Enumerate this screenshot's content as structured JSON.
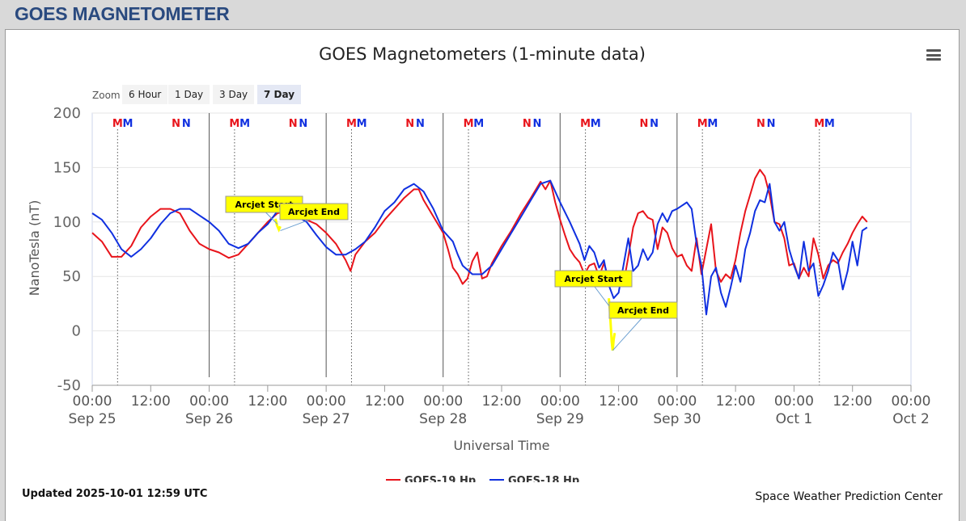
{
  "header": {
    "title": "GOES MAGNETOMETER"
  },
  "chart": {
    "title": "GOES Magnetometers (1-minute data)",
    "menu_icon": "hamburger-menu-icon",
    "zoom": {
      "label": "Zoom",
      "buttons": [
        {
          "label": "6 Hour",
          "active": false
        },
        {
          "label": "1 Day",
          "active": false
        },
        {
          "label": "3 Day",
          "active": false
        },
        {
          "label": "7 Day",
          "active": true
        }
      ]
    },
    "updated": "Updated 2025-10-01 12:59 UTC",
    "credit": "Space Weather Prediction Center"
  },
  "chart_data": {
    "type": "line",
    "title": "GOES Magnetometers (1-minute data)",
    "xlabel": "Universal Time",
    "ylabel": "NanoTesla (nT)",
    "x_unit": "hours since Sep 25 00:00 UTC",
    "xlim": [
      0,
      168
    ],
    "ylim": [
      -50,
      200
    ],
    "x_ticks": [
      {
        "x": 0,
        "label": "00:00",
        "sublabel": "Sep 25"
      },
      {
        "x": 12,
        "label": "12:00",
        "sublabel": ""
      },
      {
        "x": 24,
        "label": "00:00",
        "sublabel": "Sep 26"
      },
      {
        "x": 36,
        "label": "12:00",
        "sublabel": ""
      },
      {
        "x": 48,
        "label": "00:00",
        "sublabel": "Sep 27"
      },
      {
        "x": 60,
        "label": "12:00",
        "sublabel": ""
      },
      {
        "x": 72,
        "label": "00:00",
        "sublabel": "Sep 28"
      },
      {
        "x": 84,
        "label": "12:00",
        "sublabel": ""
      },
      {
        "x": 96,
        "label": "00:00",
        "sublabel": "Sep 29"
      },
      {
        "x": 108,
        "label": "12:00",
        "sublabel": ""
      },
      {
        "x": 120,
        "label": "00:00",
        "sublabel": "Sep 30"
      },
      {
        "x": 132,
        "label": "12:00",
        "sublabel": ""
      },
      {
        "x": 144,
        "label": "00:00",
        "sublabel": "Oct 1"
      },
      {
        "x": 156,
        "label": "12:00",
        "sublabel": ""
      },
      {
        "x": 168,
        "label": "00:00",
        "sublabel": "Oct 2"
      }
    ],
    "y_ticks": [
      -50,
      0,
      50,
      100,
      150,
      200
    ],
    "grid": true,
    "legend_position": "bottom-center",
    "day_lines": [
      24,
      48,
      72,
      96,
      120
    ],
    "series": [
      {
        "name": "GOES-19 Hp",
        "color": "#e8141b",
        "points": [
          [
            0,
            90
          ],
          [
            2,
            82
          ],
          [
            4,
            68
          ],
          [
            6,
            68
          ],
          [
            8,
            78
          ],
          [
            10,
            95
          ],
          [
            12,
            105
          ],
          [
            14,
            112
          ],
          [
            16,
            112
          ],
          [
            18,
            108
          ],
          [
            20,
            92
          ],
          [
            22,
            80
          ],
          [
            24,
            75
          ],
          [
            26,
            72
          ],
          [
            28,
            67
          ],
          [
            30,
            70
          ],
          [
            32,
            80
          ],
          [
            34,
            90
          ],
          [
            36,
            100
          ],
          [
            38,
            108
          ],
          [
            40,
            110
          ],
          [
            42,
            107
          ],
          [
            44,
            102
          ],
          [
            46,
            98
          ],
          [
            48,
            90
          ],
          [
            50,
            80
          ],
          [
            52,
            65
          ],
          [
            53,
            55
          ],
          [
            54,
            70
          ],
          [
            56,
            82
          ],
          [
            58,
            90
          ],
          [
            60,
            102
          ],
          [
            62,
            112
          ],
          [
            64,
            122
          ],
          [
            66,
            130
          ],
          [
            67,
            130
          ],
          [
            68,
            120
          ],
          [
            70,
            105
          ],
          [
            72,
            90
          ],
          [
            73,
            75
          ],
          [
            74,
            58
          ],
          [
            75,
            52
          ],
          [
            76,
            43
          ],
          [
            77,
            48
          ],
          [
            78,
            64
          ],
          [
            79,
            72
          ],
          [
            80,
            48
          ],
          [
            81,
            50
          ],
          [
            82,
            62
          ],
          [
            84,
            78
          ],
          [
            86,
            92
          ],
          [
            88,
            108
          ],
          [
            90,
            122
          ],
          [
            92,
            137
          ],
          [
            93,
            130
          ],
          [
            94,
            138
          ],
          [
            95,
            118
          ],
          [
            96,
            102
          ],
          [
            97,
            88
          ],
          [
            98,
            75
          ],
          [
            99,
            68
          ],
          [
            100,
            63
          ],
          [
            101,
            52
          ],
          [
            102,
            60
          ],
          [
            103,
            62
          ],
          [
            104,
            50
          ],
          [
            105,
            62
          ],
          [
            106,
            48
          ],
          [
            107,
            52
          ],
          [
            108,
            45
          ],
          [
            109,
            43
          ],
          [
            110,
            68
          ],
          [
            111,
            95
          ],
          [
            112,
            108
          ],
          [
            113,
            110
          ],
          [
            114,
            104
          ],
          [
            115,
            102
          ],
          [
            116,
            75
          ],
          [
            117,
            95
          ],
          [
            118,
            90
          ],
          [
            119,
            76
          ],
          [
            120,
            68
          ],
          [
            121,
            70
          ],
          [
            122,
            60
          ],
          [
            123,
            55
          ],
          [
            124,
            85
          ],
          [
            125,
            52
          ],
          [
            126,
            75
          ],
          [
            127,
            98
          ],
          [
            128,
            55
          ],
          [
            129,
            45
          ],
          [
            130,
            52
          ],
          [
            131,
            48
          ],
          [
            132,
            65
          ],
          [
            133,
            90
          ],
          [
            134,
            110
          ],
          [
            135,
            125
          ],
          [
            136,
            140
          ],
          [
            137,
            148
          ],
          [
            138,
            142
          ],
          [
            139,
            125
          ],
          [
            140,
            100
          ],
          [
            141,
            98
          ],
          [
            142,
            85
          ],
          [
            143,
            60
          ],
          [
            144,
            62
          ],
          [
            145,
            48
          ],
          [
            146,
            58
          ],
          [
            147,
            50
          ],
          [
            148,
            85
          ],
          [
            149,
            70
          ],
          [
            150,
            48
          ],
          [
            151,
            60
          ],
          [
            152,
            65
          ],
          [
            153,
            62
          ],
          [
            154,
            72
          ],
          [
            155,
            80
          ],
          [
            156,
            90
          ],
          [
            157,
            98
          ],
          [
            158,
            105
          ],
          [
            159,
            100
          ]
        ]
      },
      {
        "name": "GOES-18 Hp",
        "color": "#1030e0",
        "points": [
          [
            0,
            108
          ],
          [
            2,
            102
          ],
          [
            4,
            90
          ],
          [
            6,
            75
          ],
          [
            8,
            68
          ],
          [
            10,
            75
          ],
          [
            12,
            85
          ],
          [
            14,
            98
          ],
          [
            16,
            108
          ],
          [
            18,
            112
          ],
          [
            20,
            112
          ],
          [
            22,
            106
          ],
          [
            24,
            100
          ],
          [
            26,
            92
          ],
          [
            28,
            80
          ],
          [
            30,
            76
          ],
          [
            32,
            80
          ],
          [
            34,
            90
          ],
          [
            36,
            98
          ],
          [
            38,
            110
          ],
          [
            40,
            112
          ],
          [
            42,
            105
          ],
          [
            44,
            100
          ],
          [
            46,
            88
          ],
          [
            48,
            77
          ],
          [
            50,
            70
          ],
          [
            52,
            70
          ],
          [
            54,
            75
          ],
          [
            56,
            82
          ],
          [
            58,
            95
          ],
          [
            60,
            110
          ],
          [
            62,
            118
          ],
          [
            64,
            130
          ],
          [
            66,
            135
          ],
          [
            68,
            128
          ],
          [
            70,
            112
          ],
          [
            72,
            92
          ],
          [
            74,
            82
          ],
          [
            75,
            70
          ],
          [
            76,
            60
          ],
          [
            78,
            52
          ],
          [
            80,
            52
          ],
          [
            82,
            60
          ],
          [
            84,
            75
          ],
          [
            86,
            90
          ],
          [
            88,
            105
          ],
          [
            90,
            120
          ],
          [
            92,
            135
          ],
          [
            94,
            138
          ],
          [
            96,
            118
          ],
          [
            98,
            100
          ],
          [
            100,
            80
          ],
          [
            101,
            65
          ],
          [
            102,
            78
          ],
          [
            103,
            72
          ],
          [
            104,
            58
          ],
          [
            105,
            65
          ],
          [
            106,
            42
          ],
          [
            107,
            30
          ],
          [
            108,
            35
          ],
          [
            109,
            60
          ],
          [
            110,
            85
          ],
          [
            111,
            55
          ],
          [
            112,
            60
          ],
          [
            113,
            75
          ],
          [
            114,
            65
          ],
          [
            115,
            72
          ],
          [
            116,
            98
          ],
          [
            117,
            108
          ],
          [
            118,
            100
          ],
          [
            119,
            110
          ],
          [
            120,
            112
          ],
          [
            121,
            115
          ],
          [
            122,
            118
          ],
          [
            123,
            112
          ],
          [
            124,
            80
          ],
          [
            125,
            60
          ],
          [
            126,
            15
          ],
          [
            127,
            50
          ],
          [
            128,
            58
          ],
          [
            129,
            35
          ],
          [
            130,
            22
          ],
          [
            131,
            40
          ],
          [
            132,
            60
          ],
          [
            133,
            45
          ],
          [
            134,
            75
          ],
          [
            135,
            90
          ],
          [
            136,
            110
          ],
          [
            137,
            120
          ],
          [
            138,
            118
          ],
          [
            139,
            135
          ],
          [
            140,
            100
          ],
          [
            141,
            92
          ],
          [
            142,
            100
          ],
          [
            143,
            75
          ],
          [
            144,
            60
          ],
          [
            145,
            48
          ],
          [
            146,
            82
          ],
          [
            147,
            55
          ],
          [
            148,
            62
          ],
          [
            149,
            32
          ],
          [
            150,
            42
          ],
          [
            151,
            55
          ],
          [
            152,
            72
          ],
          [
            153,
            65
          ],
          [
            154,
            38
          ],
          [
            155,
            55
          ],
          [
            156,
            82
          ],
          [
            157,
            60
          ],
          [
            158,
            92
          ],
          [
            159,
            95
          ]
        ]
      }
    ],
    "markers": [
      {
        "label": "M",
        "color": "#e8141b",
        "x": 5.2
      },
      {
        "label": "M",
        "color": "#1030e0",
        "x": 7.3
      },
      {
        "label": "N",
        "color": "#e8141b",
        "x": 17.2
      },
      {
        "label": "N",
        "color": "#1030e0",
        "x": 19.3
      },
      {
        "label": "M",
        "color": "#e8141b",
        "x": 29.2
      },
      {
        "label": "M",
        "color": "#1030e0",
        "x": 31.3
      },
      {
        "label": "N",
        "color": "#e8141b",
        "x": 41.2
      },
      {
        "label": "N",
        "color": "#1030e0",
        "x": 43.3
      },
      {
        "label": "M",
        "color": "#e8141b",
        "x": 53.2
      },
      {
        "label": "M",
        "color": "#1030e0",
        "x": 55.3
      },
      {
        "label": "N",
        "color": "#e8141b",
        "x": 65.2
      },
      {
        "label": "N",
        "color": "#1030e0",
        "x": 67.3
      },
      {
        "label": "M",
        "color": "#e8141b",
        "x": 77.2
      },
      {
        "label": "M",
        "color": "#1030e0",
        "x": 79.3
      },
      {
        "label": "N",
        "color": "#e8141b",
        "x": 89.2
      },
      {
        "label": "N",
        "color": "#1030e0",
        "x": 91.3
      },
      {
        "label": "M",
        "color": "#e8141b",
        "x": 101.2
      },
      {
        "label": "M",
        "color": "#1030e0",
        "x": 103.3
      },
      {
        "label": "N",
        "color": "#e8141b",
        "x": 113.2
      },
      {
        "label": "N",
        "color": "#1030e0",
        "x": 115.3
      },
      {
        "label": "M",
        "color": "#e8141b",
        "x": 125.2
      },
      {
        "label": "M",
        "color": "#1030e0",
        "x": 127.3
      },
      {
        "label": "N",
        "color": "#e8141b",
        "x": 137.2
      },
      {
        "label": "N",
        "color": "#1030e0",
        "x": 139.3
      },
      {
        "label": "M",
        "color": "#e8141b",
        "x": 149.2
      },
      {
        "label": "M",
        "color": "#1030e0",
        "x": 151.3
      }
    ],
    "annotations": [
      {
        "label": "Arcjet Start",
        "x": 38,
        "y": 98
      },
      {
        "label": "Arcjet End",
        "x": 38.6,
        "y": 92
      },
      {
        "label": "Arcjet Start",
        "x": 106.2,
        "y": 22
      },
      {
        "label": "Arcjet End",
        "x": 106.8,
        "y": -18
      }
    ],
    "arcjet_color": "#ffff00",
    "arcjet_segments": [
      [
        [
          37.6,
          103
        ],
        [
          37.9,
          97
        ],
        [
          38.3,
          93
        ],
        [
          38.6,
          96
        ]
      ],
      [
        [
          106.0,
          30
        ],
        [
          106.2,
          20
        ],
        [
          106.4,
          5
        ],
        [
          106.6,
          -10
        ],
        [
          106.8,
          -18
        ],
        [
          107.0,
          -8
        ],
        [
          107.2,
          -2
        ]
      ]
    ]
  }
}
